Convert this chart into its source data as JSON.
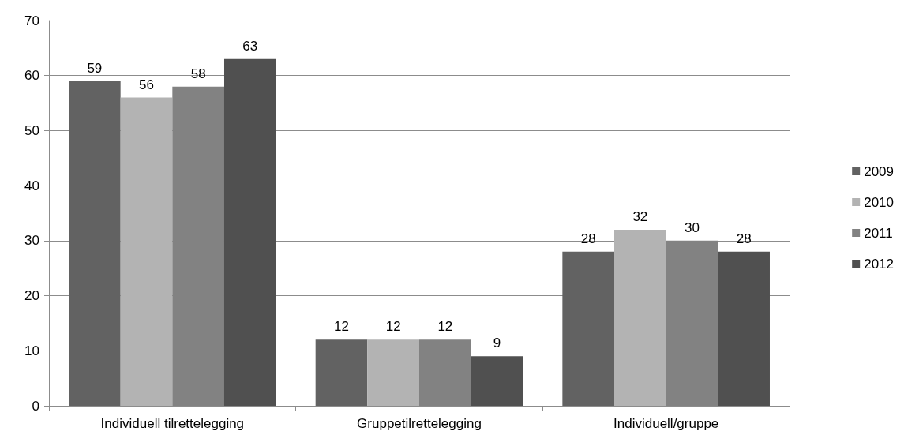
{
  "chart_data": {
    "type": "bar",
    "categories": [
      "Individuell tilrettelegging",
      "Gruppetilrettelegging",
      "Individuell/gruppe"
    ],
    "series": [
      {
        "name": "2009",
        "color": "#626262",
        "values": [
          59,
          12,
          28
        ]
      },
      {
        "name": "2010",
        "color": "#b3b3b3",
        "values": [
          56,
          12,
          32
        ]
      },
      {
        "name": "2011",
        "color": "#828282",
        "values": [
          58,
          12,
          30
        ]
      },
      {
        "name": "2012",
        "color": "#505050",
        "values": [
          63,
          9,
          28
        ]
      }
    ],
    "ylim": [
      0,
      70
    ],
    "yticks": [
      0,
      10,
      20,
      30,
      40,
      50,
      60,
      70
    ],
    "grid": "y",
    "legend": "right",
    "data_labels": true
  }
}
